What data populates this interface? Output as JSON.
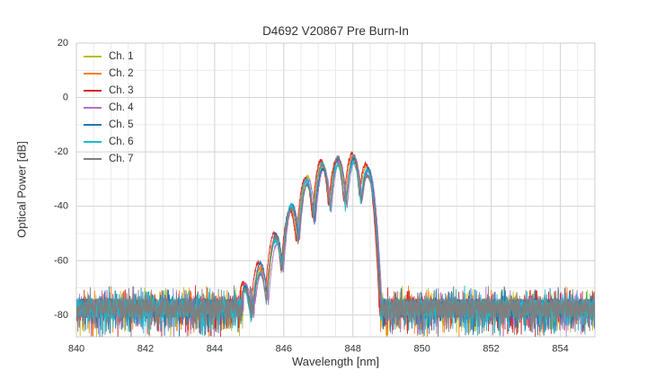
{
  "chart_data": {
    "type": "line",
    "title": "D4692 V20867 Pre Burn-In",
    "xlabel": "Wavelength [nm]",
    "ylabel": "Optical Power [dB]",
    "xlim": [
      840,
      855
    ],
    "ylim": [
      -88,
      20
    ],
    "xticks": [
      840,
      842,
      844,
      846,
      848,
      850,
      852,
      854
    ],
    "yticks": [
      20,
      0,
      -20,
      -40,
      -60,
      -80
    ],
    "x_minor_step_nm": 0.5,
    "y_minor_step_db": 10,
    "grid": true,
    "legend_position": "upper-left",
    "noise_floor_db": -77.5,
    "noise_spread_db": 7,
    "signal_range_nm": [
      844.8,
      848.8
    ],
    "mode_spacing_nm": 0.45,
    "mode_half_width_nm": 0.225,
    "valley_depth_db": 17,
    "mode_peaks": {
      "wavelengths_nm": [
        844.87,
        845.32,
        845.77,
        846.22,
        846.67,
        847.12,
        847.57,
        848.02,
        848.42
      ],
      "powers_db": [
        -70,
        -63,
        -52,
        -41,
        -31,
        -26,
        -23.5,
        -22.5,
        -27
      ]
    },
    "series": [
      {
        "name": "Ch. 1",
        "color": "#bcbd22",
        "shift_nm": 0.02,
        "offset_db": 0.5,
        "seed": 11
      },
      {
        "name": "Ch. 2",
        "color": "#ff7f0e",
        "shift_nm": -0.03,
        "offset_db": 1.0,
        "seed": 22
      },
      {
        "name": "Ch. 3",
        "color": "#d62728",
        "shift_nm": -0.05,
        "offset_db": 1.5,
        "seed": 33
      },
      {
        "name": "Ch. 4",
        "color": "#b173c9",
        "shift_nm": 0.04,
        "offset_db": 0.0,
        "seed": 44
      },
      {
        "name": "Ch. 5",
        "color": "#1f77b4",
        "shift_nm": 0.01,
        "offset_db": 0.8,
        "seed": 55
      },
      {
        "name": "Ch. 6",
        "color": "#17becf",
        "shift_nm": -0.01,
        "offset_db": 0.3,
        "seed": 66
      },
      {
        "name": "Ch. 7",
        "color": "#7f7f7f",
        "shift_nm": 0.0,
        "offset_db": 0.0,
        "seed": 77
      }
    ]
  }
}
